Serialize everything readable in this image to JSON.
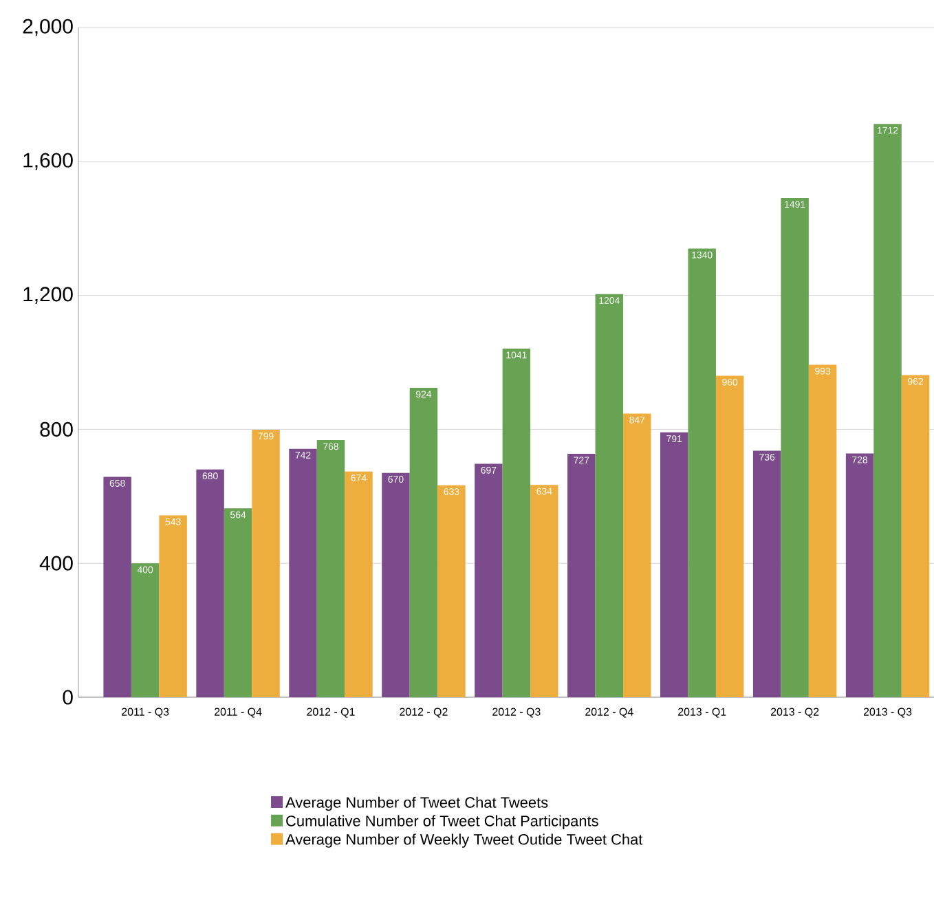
{
  "chart_data": {
    "type": "bar",
    "categories": [
      "2011 - Q3",
      "2011 - Q4",
      "2012 - Q1",
      "2012 - Q2",
      "2012 - Q3",
      "2012 - Q4",
      "2013 - Q1",
      "2013 - Q2",
      "2013 - Q3"
    ],
    "series": [
      {
        "name": "Average Number of Tweet Chat Tweets",
        "color": "#7b4b8c",
        "values": [
          658,
          680,
          742,
          670,
          697,
          727,
          791,
          736,
          728
        ]
      },
      {
        "name": "Cumulative Number of Tweet Chat Participants",
        "color": "#67a352",
        "values": [
          400,
          564,
          768,
          924,
          1041,
          1204,
          1340,
          1491,
          1712
        ]
      },
      {
        "name": "Average Number of Weekly Tweet Outide Tweet Chat",
        "color": "#eeae3d",
        "values": [
          543,
          799,
          674,
          633,
          634,
          847,
          960,
          993,
          962
        ]
      }
    ],
    "ylim": [
      0,
      2000
    ],
    "yticks": [
      {
        "value": 0,
        "label": "0"
      },
      {
        "value": 400,
        "label": "400"
      },
      {
        "value": 800,
        "label": "800"
      },
      {
        "value": 1200,
        "label": "1,200"
      },
      {
        "value": 1600,
        "label": "1,600"
      },
      {
        "value": 2000,
        "label": "2,000"
      }
    ],
    "grid": "y",
    "legend": "bottom",
    "data_labels": true
  }
}
